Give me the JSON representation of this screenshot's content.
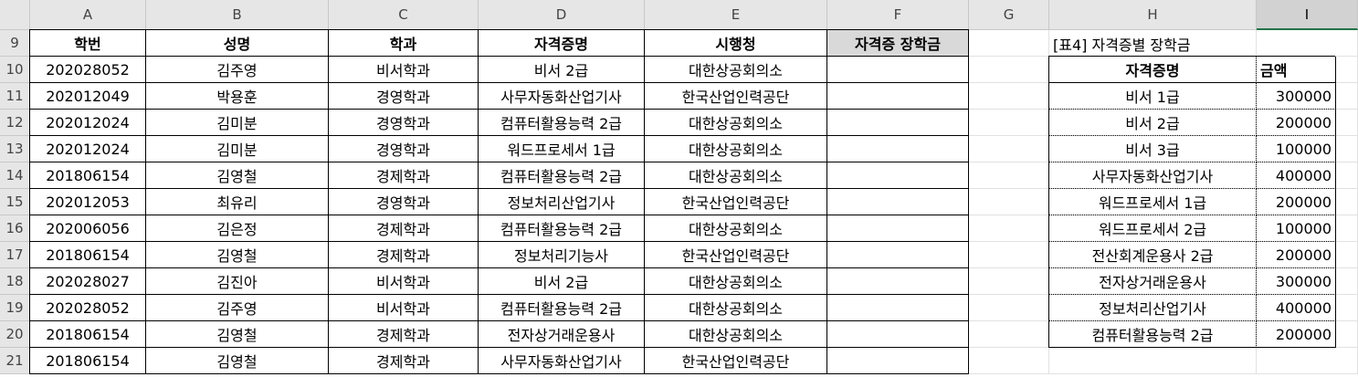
{
  "columns": [
    "A",
    "B",
    "C",
    "D",
    "E",
    "F",
    "G",
    "H",
    "I"
  ],
  "rows": [
    "9",
    "10",
    "11",
    "12",
    "13",
    "14",
    "15",
    "16",
    "17",
    "18",
    "19",
    "20",
    "21"
  ],
  "main_headers": [
    "학번",
    "성명",
    "학과",
    "자격증명",
    "시행청",
    "자격증 장학금"
  ],
  "main_rows": [
    [
      "202028052",
      "김주영",
      "비서학과",
      "비서 2급",
      "대한상공회의소",
      ""
    ],
    [
      "202012049",
      "박용훈",
      "경영학과",
      "사무자동화산업기사",
      "한국산업인력공단",
      ""
    ],
    [
      "202012024",
      "김미분",
      "경영학과",
      "컴퓨터활용능력 2급",
      "대한상공회의소",
      ""
    ],
    [
      "202012024",
      "김미분",
      "경영학과",
      "워드프로세서 1급",
      "대한상공회의소",
      ""
    ],
    [
      "201806154",
      "김영철",
      "경제학과",
      "컴퓨터활용능력 2급",
      "대한상공회의소",
      ""
    ],
    [
      "202012053",
      "최유리",
      "경영학과",
      "정보처리산업기사",
      "한국산업인력공단",
      ""
    ],
    [
      "202006056",
      "김은정",
      "경제학과",
      "컴퓨터활용능력 2급",
      "대한상공회의소",
      ""
    ],
    [
      "201806154",
      "김영철",
      "경제학과",
      "정보처리기능사",
      "한국산업인력공단",
      ""
    ],
    [
      "202028027",
      "김진아",
      "비서학과",
      "비서 2급",
      "대한상공회의소",
      ""
    ],
    [
      "202028052",
      "김주영",
      "비서학과",
      "컴퓨터활용능력 2급",
      "대한상공회의소",
      ""
    ],
    [
      "201806154",
      "김영철",
      "경제학과",
      "전자상거래운용사",
      "대한상공회의소",
      ""
    ],
    [
      "201806154",
      "김영철",
      "경제학과",
      "사무자동화산업기사",
      "한국산업인력공단",
      ""
    ]
  ],
  "side_title": "[표4] 자격증별 장학금",
  "side_headers": [
    "자격증명",
    "금액"
  ],
  "side_rows": [
    [
      "비서 1급",
      "300000"
    ],
    [
      "비서 2급",
      "200000"
    ],
    [
      "비서 3급",
      "100000"
    ],
    [
      "사무자동화산업기사",
      "400000"
    ],
    [
      "워드프로세서 1급",
      "200000"
    ],
    [
      "워드프로세서 2급",
      "100000"
    ],
    [
      "전산회계운용사 2급",
      "200000"
    ],
    [
      "전자상거래운용사",
      "300000"
    ],
    [
      "정보처리산업기사",
      "400000"
    ],
    [
      "컴퓨터활용능력 2급",
      "200000"
    ]
  ],
  "selected_column": "I"
}
